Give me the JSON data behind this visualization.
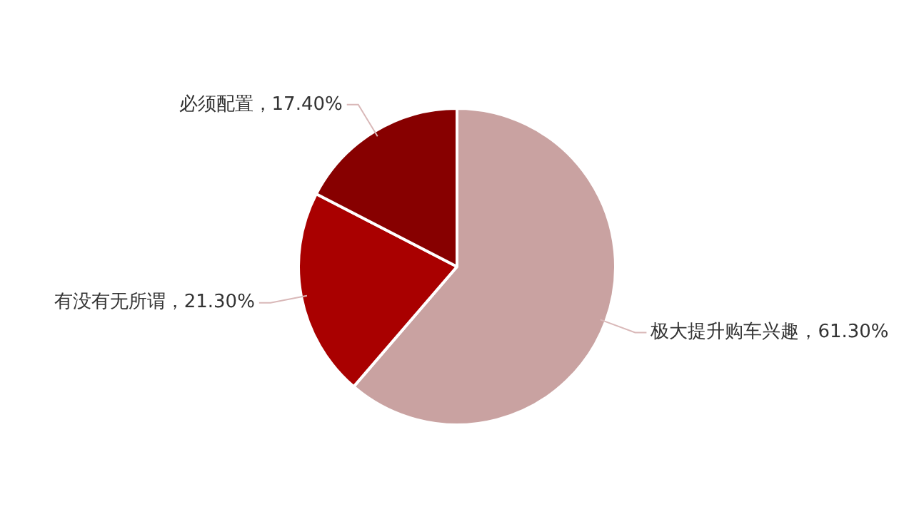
{
  "chart_data": {
    "type": "pie",
    "categories": [
      "极大提升购车兴趣",
      "有没有无所谓",
      "必须配置"
    ],
    "values": [
      61.3,
      21.3,
      17.4
    ],
    "value_labels": [
      "61.30%",
      "21.30%",
      "17.40%"
    ],
    "colors": [
      "#c9a2a1",
      "#a90000",
      "#870000"
    ],
    "legend": false
  }
}
